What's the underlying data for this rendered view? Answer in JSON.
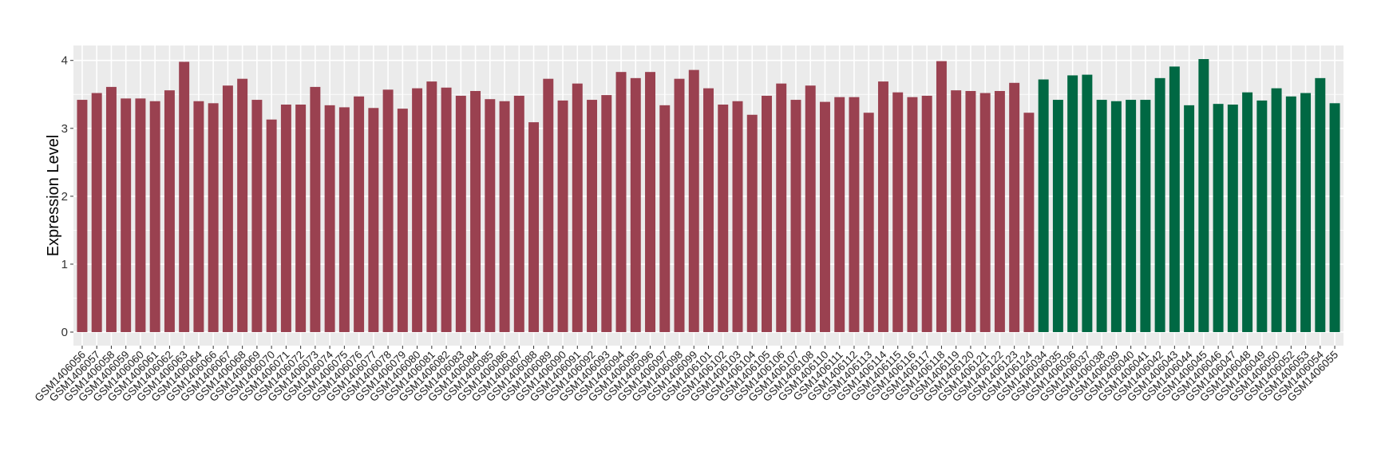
{
  "chart_data": {
    "type": "bar",
    "title": "",
    "xlabel": "",
    "ylabel": "Expression Level",
    "ylim": [
      -0.2,
      4.22
    ],
    "yticks": [
      0,
      1,
      2,
      3,
      4
    ],
    "grid": true,
    "legend": "none",
    "colors": {
      "group1": "#9A4150",
      "group2": "#006843",
      "panel": "#EBEBEB",
      "gridline": "#FFFFFF"
    },
    "categories": [
      "GSM1406056",
      "GSM1406057",
      "GSM1406058",
      "GSM1406059",
      "GSM1406060",
      "GSM1406061",
      "GSM1406062",
      "GSM1406063",
      "GSM1406064",
      "GSM1406066",
      "GSM1406067",
      "GSM1406068",
      "GSM1406069",
      "GSM1406070",
      "GSM1406071",
      "GSM1406072",
      "GSM1406073",
      "GSM1406074",
      "GSM1406075",
      "GSM1406076",
      "GSM1406077",
      "GSM1406078",
      "GSM1406079",
      "GSM1406080",
      "GSM1406081",
      "GSM1406082",
      "GSM1406083",
      "GSM1406084",
      "GSM1406085",
      "GSM1406086",
      "GSM1406087",
      "GSM1406088",
      "GSM1406089",
      "GSM1406090",
      "GSM1406091",
      "GSM1406092",
      "GSM1406093",
      "GSM1406094",
      "GSM1406095",
      "GSM1406096",
      "GSM1406097",
      "GSM1406098",
      "GSM1406099",
      "GSM1406101",
      "GSM1406102",
      "GSM1406103",
      "GSM1406104",
      "GSM1406105",
      "GSM1406106",
      "GSM1406107",
      "GSM1406108",
      "GSM1406110",
      "GSM1406111",
      "GSM1406112",
      "GSM1406113",
      "GSM1406114",
      "GSM1406115",
      "GSM1406116",
      "GSM1406117",
      "GSM1406118",
      "GSM1406119",
      "GSM1406120",
      "GSM1406121",
      "GSM1406122",
      "GSM1406123",
      "GSM1406124",
      "GSM1406034",
      "GSM1406035",
      "GSM1406036",
      "GSM1406037",
      "GSM1406038",
      "GSM1406039",
      "GSM1406040",
      "GSM1406041",
      "GSM1406042",
      "GSM1406043",
      "GSM1406044",
      "GSM1406045",
      "GSM1406046",
      "GSM1406047",
      "GSM1406048",
      "GSM1406049",
      "GSM1406050",
      "GSM1406052",
      "GSM1406053",
      "GSM1406054",
      "GSM1406055"
    ],
    "values": [
      3.42,
      3.52,
      3.61,
      3.44,
      3.44,
      3.4,
      3.56,
      3.98,
      3.4,
      3.37,
      3.63,
      3.73,
      3.42,
      3.13,
      3.35,
      3.35,
      3.61,
      3.34,
      3.31,
      3.47,
      3.3,
      3.57,
      3.29,
      3.59,
      3.69,
      3.6,
      3.48,
      3.55,
      3.43,
      3.4,
      3.48,
      3.09,
      3.73,
      3.41,
      3.66,
      3.42,
      3.49,
      3.83,
      3.74,
      3.83,
      3.34,
      3.73,
      3.86,
      3.59,
      3.35,
      3.4,
      3.2,
      3.48,
      3.66,
      3.42,
      3.63,
      3.39,
      3.46,
      3.46,
      3.23,
      3.69,
      3.53,
      3.46,
      3.48,
      3.99,
      3.56,
      3.55,
      3.52,
      3.55,
      3.67,
      3.23,
      3.72,
      3.42,
      3.78,
      3.79,
      3.42,
      3.4,
      3.42,
      3.42,
      3.74,
      3.91,
      3.34,
      4.02,
      3.36,
      3.35,
      3.53,
      3.41,
      3.59,
      3.47,
      3.52,
      3.74,
      3.37
    ],
    "groups": [
      "group1",
      "group1",
      "group1",
      "group1",
      "group1",
      "group1",
      "group1",
      "group1",
      "group1",
      "group1",
      "group1",
      "group1",
      "group1",
      "group1",
      "group1",
      "group1",
      "group1",
      "group1",
      "group1",
      "group1",
      "group1",
      "group1",
      "group1",
      "group1",
      "group1",
      "group1",
      "group1",
      "group1",
      "group1",
      "group1",
      "group1",
      "group1",
      "group1",
      "group1",
      "group1",
      "group1",
      "group1",
      "group1",
      "group1",
      "group1",
      "group1",
      "group1",
      "group1",
      "group1",
      "group1",
      "group1",
      "group1",
      "group1",
      "group1",
      "group1",
      "group1",
      "group1",
      "group1",
      "group1",
      "group1",
      "group1",
      "group1",
      "group1",
      "group1",
      "group1",
      "group1",
      "group1",
      "group1",
      "group1",
      "group1",
      "group1",
      "group2",
      "group2",
      "group2",
      "group2",
      "group2",
      "group2",
      "group2",
      "group2",
      "group2",
      "group2",
      "group2",
      "group2",
      "group2",
      "group2",
      "group2",
      "group2",
      "group2",
      "group2",
      "group2",
      "group2",
      "group2"
    ]
  }
}
